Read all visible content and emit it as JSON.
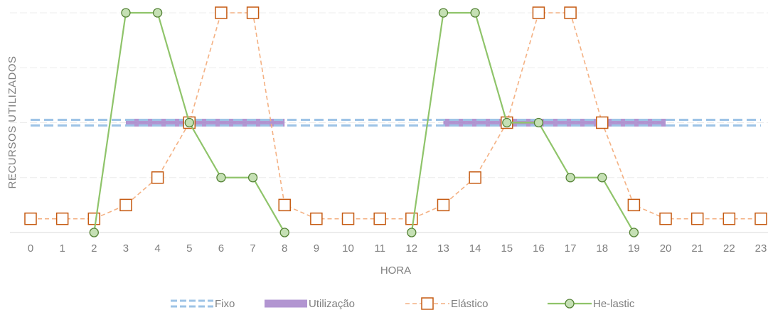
{
  "chart_data": {
    "type": "line",
    "x_label": "HORA",
    "y_label": "RECURSOS UTILIZADOS",
    "x": [
      0,
      1,
      2,
      3,
      4,
      5,
      6,
      7,
      8,
      9,
      10,
      11,
      12,
      13,
      14,
      15,
      16,
      17,
      18,
      19,
      20,
      21,
      22,
      23
    ],
    "xlim": [
      0,
      23
    ],
    "ylim": [
      0,
      4
    ],
    "yticks": [
      0,
      1,
      2,
      3,
      4
    ],
    "grid": true,
    "legend": "bottom",
    "series": [
      {
        "name": "Utilização",
        "color": "#a483c9",
        "style": "thick",
        "values": [
          null,
          null,
          null,
          2,
          2,
          2,
          2,
          2,
          2,
          null,
          null,
          null,
          null,
          2,
          2,
          2,
          2,
          2,
          2,
          2,
          2,
          null,
          null,
          null
        ]
      },
      {
        "name": "Fixo",
        "color": "#9dc3e6",
        "style": "double-dashed",
        "values": [
          2,
          2,
          2,
          2,
          2,
          2,
          2,
          2,
          2,
          2,
          2,
          2,
          2,
          2,
          2,
          2,
          2,
          2,
          2,
          2,
          2,
          2,
          2,
          2
        ]
      },
      {
        "name": "Elástico",
        "color": "#f4b183",
        "marker_color": "#c55a11",
        "style": "dashed-square",
        "values": [
          0.25,
          0.25,
          0.25,
          0.5,
          1,
          2,
          4,
          4,
          0.5,
          0.25,
          0.25,
          0.25,
          0.25,
          0.5,
          1,
          2,
          4,
          4,
          2,
          0.5,
          0.25,
          0.25,
          0.25,
          0.25
        ]
      },
      {
        "name": "He-lastic",
        "color": "#8fc46a",
        "marker_color": "#548235",
        "style": "solid-circle",
        "values": [
          null,
          null,
          0,
          4,
          4,
          2,
          1,
          1,
          0,
          null,
          null,
          null,
          0,
          4,
          4,
          2,
          2,
          1,
          1,
          0,
          null,
          null,
          null,
          null
        ]
      }
    ]
  }
}
